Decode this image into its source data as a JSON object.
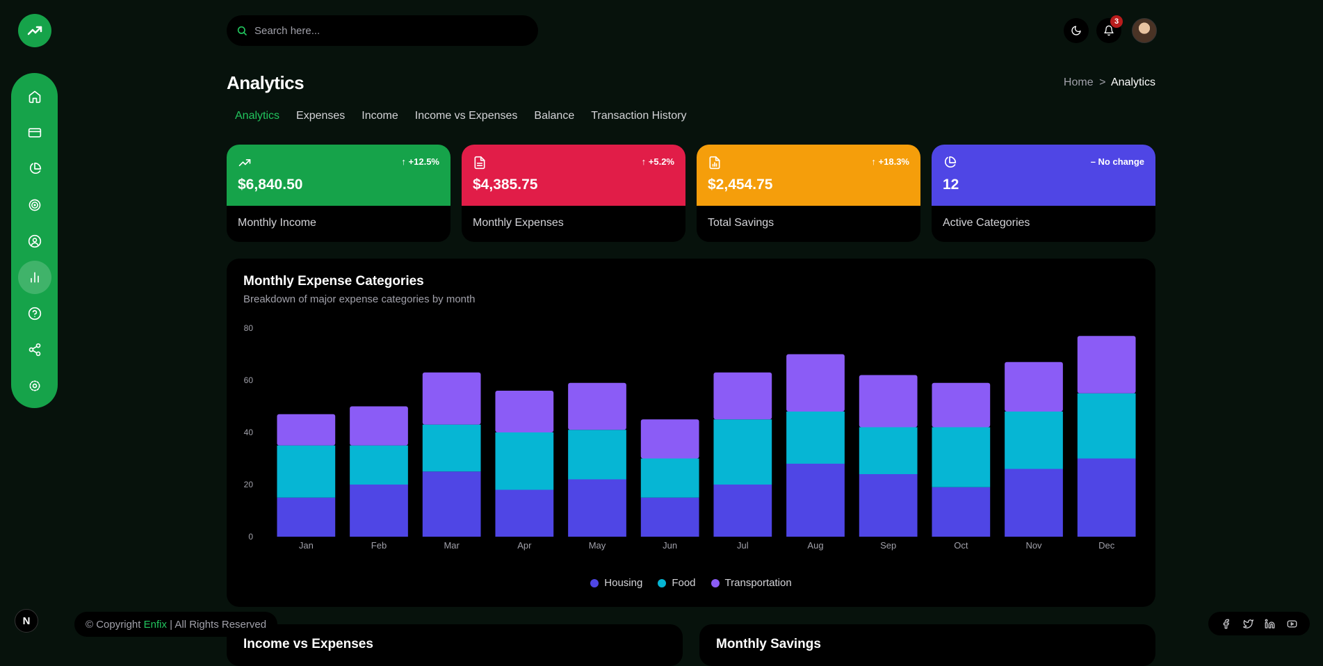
{
  "search": {
    "placeholder": "Search here..."
  },
  "notifications": {
    "count": "3"
  },
  "page": {
    "title": "Analytics"
  },
  "breadcrumb": {
    "home": "Home",
    "separator": ">",
    "current": "Analytics"
  },
  "tabs": [
    {
      "label": "Analytics",
      "active": true
    },
    {
      "label": "Expenses"
    },
    {
      "label": "Income"
    },
    {
      "label": "Income vs Expenses"
    },
    {
      "label": "Balance"
    },
    {
      "label": "Transaction History"
    }
  ],
  "sidebar": {
    "items": [
      {
        "icon": "home-icon"
      },
      {
        "icon": "credit-card-icon"
      },
      {
        "icon": "pie-chart-icon"
      },
      {
        "icon": "target-icon"
      },
      {
        "icon": "user-circle-icon"
      },
      {
        "icon": "bar-chart-icon",
        "active": true
      },
      {
        "icon": "help-circle-icon"
      },
      {
        "icon": "share-icon"
      },
      {
        "icon": "settings-icon"
      }
    ]
  },
  "stats": [
    {
      "value": "$6,840.50",
      "change": "↑ +12.5%",
      "label": "Monthly Income",
      "color": "#16a34a",
      "icon": "trending-up-icon"
    },
    {
      "value": "$4,385.75",
      "change": "↑ +5.2%",
      "label": "Monthly Expenses",
      "color": "#e11d48",
      "icon": "file-text-icon"
    },
    {
      "value": "$2,454.75",
      "change": "↑ +18.3%",
      "label": "Total Savings",
      "color": "#f59e0b",
      "icon": "file-chart-icon"
    },
    {
      "value": "12",
      "change": "– No change",
      "label": "Active Categories",
      "color": "#4f46e5",
      "icon": "pie-chart-icon"
    }
  ],
  "chart": {
    "title": "Monthly Expense Categories",
    "subtitle": "Breakdown of major expense categories by month"
  },
  "chart_data": {
    "type": "bar",
    "stacked": true,
    "categories": [
      "Jan",
      "Feb",
      "Mar",
      "Apr",
      "May",
      "Jun",
      "Jul",
      "Aug",
      "Sep",
      "Oct",
      "Nov",
      "Dec"
    ],
    "series": [
      {
        "name": "Housing",
        "color": "#4f46e5",
        "values": [
          15,
          20,
          25,
          18,
          22,
          15,
          20,
          28,
          24,
          19,
          26,
          30
        ]
      },
      {
        "name": "Food",
        "color": "#06b6d4",
        "values": [
          20,
          15,
          18,
          22,
          19,
          15,
          25,
          20,
          18,
          23,
          22,
          25
        ]
      },
      {
        "name": "Transportation",
        "color": "#8b5cf6",
        "values": [
          12,
          15,
          20,
          16,
          18,
          15,
          18,
          22,
          20,
          17,
          19,
          22
        ]
      }
    ],
    "yticks": [
      0,
      20,
      40,
      60,
      80
    ],
    "ylim": [
      0,
      80
    ],
    "grid": false,
    "legend": "bottom-center"
  },
  "bottom_cards": [
    {
      "title": "Income vs Expenses"
    },
    {
      "title": "Monthly Savings"
    }
  ],
  "footer": {
    "prefix": "© Copyright ",
    "brand": "Enfix",
    "suffix": " | All Rights Reserved"
  },
  "next_badge": "N",
  "socials": [
    "facebook-icon",
    "twitter-icon",
    "linkedin-icon",
    "youtube-icon"
  ]
}
